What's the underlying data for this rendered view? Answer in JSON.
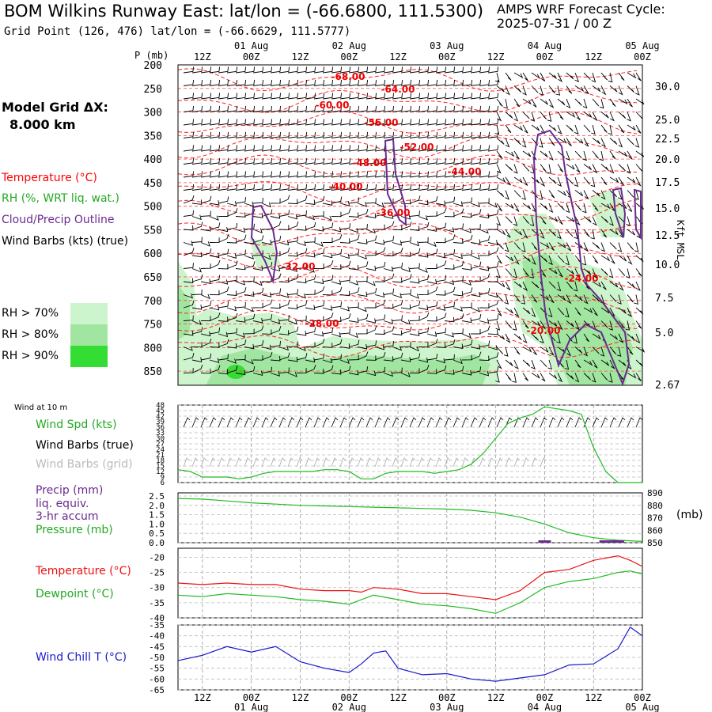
{
  "header": {
    "title": "BOM Wilkins Runway East:  lat/lon = (-66.6800, 111.5300)",
    "grid_point": "Grid Point (126, 476) lat/lon = (-66.6629, 111.5777)",
    "cycle_label": "AMPS WRF Forecast Cycle:",
    "cycle_value": "2025-07-31 / 00  Z"
  },
  "model": {
    "dx_label": "Model Grid ΔX:",
    "dx_value": "8.000 km"
  },
  "legend": {
    "temperature": "Temperature (°C)",
    "rh": "RH (%, WRT liq. wat.)",
    "cloud": "Cloud/Precip Outline",
    "wind": "Wind Barbs (kts) (true)",
    "rh70": "RH > 70%",
    "rh80": "RH > 80%",
    "rh90": "RH > 90%"
  },
  "colors": {
    "temperature": "#ff0000",
    "rh_text": "#22aa22",
    "cloud": "#6a2a8f",
    "rh70": "#cdf5cd",
    "rh80": "#a0e6a0",
    "rh90": "#33dd33",
    "wind_speed": "#22bb22",
    "wind_chill": "#1818cc",
    "precip": "#6a2a8f",
    "grid_barbs": "#aaaaaa"
  },
  "panels": {
    "wind": {
      "title": "Wind at 10 m",
      "spd_label": "Wind Spd (kts)",
      "barbs_true_label": "Wind Barbs (true)",
      "barbs_grid_label": "Wind Barbs (grid)"
    },
    "precip": {
      "label1": "Precip (mm)",
      "label2": "liq. equiv.",
      "label3": "3-hr accum",
      "pressure_label": "Pressure (mb)",
      "right_unit": "(mb)"
    },
    "temp": {
      "temp_label": "Temperature (°C)",
      "dew_label": "Dewpoint (°C)"
    },
    "chill": {
      "label": "Wind Chill T (°C)"
    }
  },
  "chart_data": [
    {
      "type": "contour",
      "name": "upper-air-cross-section",
      "y_axis_label": "P (mb)",
      "y_ticks": [
        "200",
        "250",
        "300",
        "350",
        "400",
        "450",
        "500",
        "550",
        "600",
        "650",
        "700",
        "750",
        "800",
        "850"
      ],
      "right_axis_label": "Kft MSL",
      "right_ticks": [
        "30.0",
        "25.0",
        "22.5",
        "20.0",
        "17.5",
        "15.0",
        "12.5",
        "10.0",
        "7.5",
        "5.0",
        "2.67"
      ],
      "top_hours": [
        "12Z",
        "00Z",
        "12Z",
        "00Z",
        "12Z",
        "00Z",
        "12Z",
        "00Z",
        "12Z",
        "00Z"
      ],
      "top_dates": [
        "01 Aug",
        "02 Aug",
        "03 Aug",
        "04 Aug",
        "05 Aug"
      ],
      "temp_contour_labels": [
        "-68.00",
        "-64.00",
        "-60.00",
        "-56.00",
        "-52.00",
        "-48.00",
        "-44.00",
        "-40.00",
        "-36.00",
        "-32.00",
        "-28.00",
        "-24.00",
        "-20.00"
      ]
    },
    {
      "type": "line",
      "name": "wind-speed-10m",
      "y_ticks": [
        "48",
        "45",
        "42",
        "39",
        "36",
        "33",
        "30",
        "27",
        "24",
        "21",
        "18",
        "15",
        "12",
        "9",
        "6"
      ],
      "ylim": [
        6,
        48
      ],
      "x_hours": [
        6,
        9,
        12,
        15,
        18,
        21,
        24,
        27,
        30,
        33,
        36,
        39,
        42,
        45,
        48,
        51,
        54,
        57,
        60,
        63,
        66,
        69,
        72,
        75,
        78,
        81,
        84,
        87,
        90,
        93,
        96,
        99,
        102,
        105,
        108,
        111,
        114,
        117,
        120
      ],
      "values": [
        13,
        12,
        9,
        9,
        9,
        8,
        9,
        11,
        12,
        12,
        12,
        12,
        13,
        13,
        12,
        8,
        8,
        11,
        12,
        12,
        12,
        11,
        12,
        13,
        16,
        22,
        30,
        38,
        41,
        43,
        47,
        46,
        45,
        43,
        25,
        12,
        6,
        6,
        6
      ]
    },
    {
      "type": "line",
      "name": "pressure-precip",
      "left_ticks": [
        "2.5",
        "2.0",
        "1.5",
        "1.0",
        "0.5",
        "0.0"
      ],
      "right_ticks": [
        "890",
        "880",
        "870",
        "860",
        "850"
      ],
      "pressure_ylim": [
        850,
        890
      ],
      "pressure_x_hours": [
        6,
        12,
        18,
        24,
        30,
        36,
        42,
        48,
        54,
        60,
        66,
        72,
        78,
        84,
        90,
        96,
        102,
        108,
        114,
        120
      ],
      "pressure_values": [
        885.5,
        885.0,
        883.5,
        882.0,
        881.0,
        880.0,
        879.5,
        879.0,
        878.5,
        878.0,
        877.5,
        877.0,
        876.0,
        874.0,
        870.5,
        865.0,
        858.0,
        854.0,
        852.0,
        851.0
      ],
      "precip_mm": [
        {
          "hour": 96,
          "value": 0.1
        },
        {
          "hour": 111,
          "value": 0.1
        },
        {
          "hour": 114,
          "value": 0.1
        }
      ]
    },
    {
      "type": "line",
      "name": "temperature-dewpoint",
      "y_ticks": [
        "-20",
        "-25",
        "-30",
        "-35",
        "-40"
      ],
      "ylim": [
        -40,
        -17
      ],
      "x_hours": [
        6,
        12,
        18,
        24,
        30,
        36,
        42,
        48,
        51,
        54,
        60,
        66,
        72,
        78,
        84,
        90,
        96,
        102,
        108,
        114,
        117,
        120
      ],
      "series": [
        {
          "name": "Temperature (°C)",
          "values": [
            -28.5,
            -29,
            -28.5,
            -29,
            -29,
            -30.5,
            -31,
            -31,
            -31.5,
            -30,
            -30.5,
            -32,
            -32,
            -33,
            -34,
            -31,
            -25,
            -24,
            -21,
            -19.5,
            -21,
            -23
          ]
        },
        {
          "name": "Dewpoint (°C)",
          "values": [
            -32.5,
            -33,
            -32,
            -32.5,
            -33,
            -34,
            -34.5,
            -35.5,
            -34,
            -32.5,
            -34,
            -35.5,
            -36,
            -37,
            -38.5,
            -35,
            -30,
            -28,
            -27,
            -25,
            -24.5,
            -25.5
          ]
        }
      ]
    },
    {
      "type": "line",
      "name": "wind-chill",
      "y_ticks": [
        "-35",
        "-40",
        "-45",
        "-50",
        "-55",
        "-60",
        "-65"
      ],
      "ylim": [
        -65,
        -35
      ],
      "x_hours": [
        6,
        12,
        18,
        24,
        30,
        36,
        42,
        48,
        51,
        54,
        57,
        60,
        66,
        72,
        78,
        84,
        90,
        96,
        102,
        108,
        114,
        117,
        120
      ],
      "values": [
        -51.5,
        -49,
        -45,
        -47.5,
        -45,
        -52,
        -55,
        -57,
        -53,
        -48,
        -47,
        -55,
        -58,
        -57.5,
        -60,
        -61,
        -59.5,
        -58,
        -53.5,
        -53,
        -46,
        -36,
        -40
      ]
    }
  ],
  "bottom_axis": {
    "hours": [
      "12Z",
      "00Z",
      "12Z",
      "00Z",
      "12Z",
      "00Z",
      "12Z",
      "00Z",
      "12Z",
      "00Z"
    ],
    "dates": [
      "01 Aug",
      "02 Aug",
      "03 Aug",
      "04 Aug",
      "05 Aug"
    ]
  }
}
